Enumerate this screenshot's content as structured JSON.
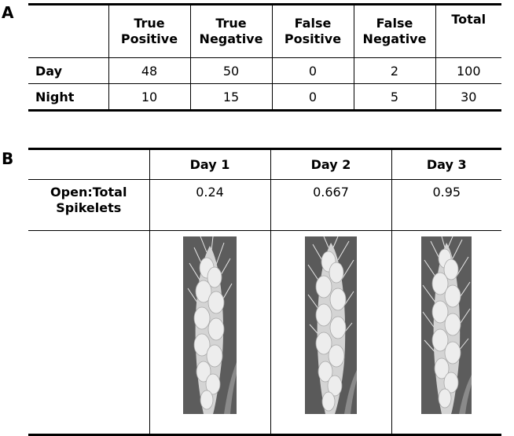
{
  "panel_a": {
    "label": "A",
    "headers": [
      [
        "True",
        "Positive"
      ],
      [
        "True",
        "Negative"
      ],
      [
        "False",
        "Positive"
      ],
      [
        "False",
        "Negative"
      ],
      [
        "Total"
      ]
    ],
    "rows": [
      {
        "label": "Day",
        "values": [
          "48",
          "50",
          "0",
          "2",
          "100"
        ]
      },
      {
        "label": "Night",
        "values": [
          "10",
          "15",
          "0",
          "5",
          "30"
        ]
      }
    ]
  },
  "panel_b": {
    "label": "B",
    "headers": [
      "Day 1",
      "Day 2",
      "Day 3"
    ],
    "row_label": [
      "Open:Total",
      "Spikelets"
    ],
    "ratios": [
      "0.24",
      "0.667",
      "0.95"
    ],
    "images": [
      {
        "icon": "wheat-spike-photo-day-1"
      },
      {
        "icon": "wheat-spike-photo-day-2"
      },
      {
        "icon": "wheat-spike-photo-day-3"
      }
    ]
  }
}
